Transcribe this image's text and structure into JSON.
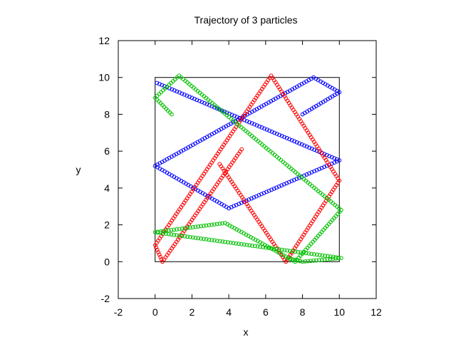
{
  "chart_data": {
    "type": "scatter",
    "title": "Trajectory of 3 particles",
    "xlabel": "x",
    "ylabel": "y",
    "xlim": [
      -2,
      12
    ],
    "ylim": [
      -2,
      12
    ],
    "x_ticks": [
      -2,
      0,
      2,
      4,
      6,
      8,
      10,
      12
    ],
    "y_ticks": [
      -2,
      0,
      2,
      4,
      6,
      8,
      10,
      12
    ],
    "box": {
      "x": [
        0,
        10
      ],
      "y": [
        0,
        10
      ]
    },
    "grid": false,
    "marker": "circle",
    "series": [
      {
        "color": "#0000ff",
        "path": [
          [
            8.0,
            8.0
          ],
          [
            10.0,
            9.2
          ],
          [
            8.6,
            10.0
          ],
          [
            0.0,
            5.2
          ],
          [
            4.0,
            2.9
          ],
          [
            10.0,
            5.5
          ],
          [
            0.1,
            9.7
          ]
        ]
      },
      {
        "color": "#ff0000",
        "path": [
          [
            4.7,
            6.1
          ],
          [
            0.4,
            0.0
          ],
          [
            0.0,
            0.9
          ],
          [
            6.3,
            10.1
          ],
          [
            10.0,
            4.4
          ],
          [
            7.1,
            0.0
          ],
          [
            3.5,
            5.3
          ]
        ]
      },
      {
        "color": "#00c000",
        "path": [
          [
            0.9,
            8.0
          ],
          [
            0.0,
            8.9
          ],
          [
            1.3,
            10.1
          ],
          [
            10.1,
            2.8
          ],
          [
            7.6,
            0.0
          ],
          [
            3.8,
            2.1
          ],
          [
            0.0,
            1.6
          ],
          [
            10.1,
            0.2
          ],
          [
            8.0,
            0.0
          ],
          [
            7.2,
            0.2
          ]
        ]
      }
    ]
  }
}
